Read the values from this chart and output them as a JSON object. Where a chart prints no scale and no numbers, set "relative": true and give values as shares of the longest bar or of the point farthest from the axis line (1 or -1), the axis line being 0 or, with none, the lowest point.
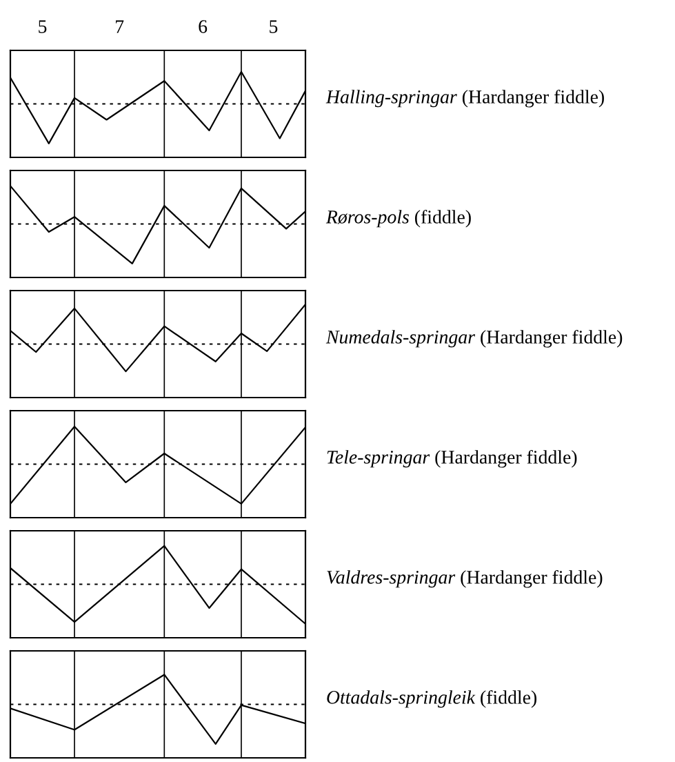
{
  "chart_data": [
    {
      "type": "line",
      "grid": "x",
      "relative": true,
      "annotations": [
        "5",
        "7",
        "6",
        "5"
      ],
      "marker": "none",
      "line_style": "solid",
      "categories": [
        null,
        null,
        null,
        null,
        null,
        null,
        null,
        null,
        null,
        null,
        null,
        null,
        null,
        null,
        null,
        null,
        null,
        null,
        null,
        null,
        null,
        null,
        null,
        null,
        null,
        null,
        null,
        null,
        null,
        null,
        null,
        null,
        null,
        null,
        null,
        null,
        null,
        null,
        null,
        null,
        null,
        null,
        null,
        null,
        null,
        null,
        null
      ],
      "series": [
        {
          "name": "Halling-springar (Hardanger fiddle)",
          "color": "#000000",
          "values": [
            0.66,
            null,
            null,
            null,
            null,
            null,
            -1,
            null,
            null,
            null,
            0.15,
            null,
            null,
            null,
            null,
            -0.4,
            null,
            null,
            null,
            null,
            null,
            null,
            null,
            null,
            0.58,
            null,
            null,
            null,
            null,
            null,
            null,
            -0.67,
            null,
            null,
            null,
            null,
            0.81,
            null,
            null,
            null,
            null,
            null,
            -0.87,
            null,
            null,
            null,
            0.33
          ]
        }
      ],
      "ref_lines": [
        {
          "axis": "y",
          "value": 0,
          "color": "#000000",
          "line_style": "dotted"
        }
      ]
    },
    {
      "type": "line",
      "grid": "x",
      "relative": true,
      "marker": "none",
      "line_style": "solid",
      "categories": [
        null,
        null,
        null,
        null,
        null,
        null,
        null,
        null,
        null,
        null,
        null,
        null,
        null,
        null,
        null,
        null,
        null,
        null,
        null,
        null,
        null,
        null,
        null,
        null,
        null,
        null,
        null,
        null,
        null,
        null,
        null,
        null,
        null,
        null,
        null,
        null,
        null,
        null,
        null,
        null,
        null,
        null,
        null,
        null,
        null,
        null,
        null
      ],
      "series": [
        {
          "name": "Røros-pols (fiddle)",
          "color": "#000000",
          "values": [
            0.96,
            null,
            null,
            null,
            null,
            null,
            -0.2,
            null,
            null,
            null,
            0.18,
            null,
            null,
            null,
            null,
            null,
            null,
            null,
            null,
            -1,
            null,
            null,
            null,
            null,
            0.46,
            null,
            null,
            null,
            null,
            null,
            null,
            -0.6,
            null,
            null,
            null,
            null,
            0.9,
            null,
            null,
            null,
            null,
            null,
            null,
            -0.12,
            null,
            null,
            0.32
          ]
        }
      ],
      "ref_lines": [
        {
          "axis": "y",
          "value": 0,
          "color": "#000000",
          "line_style": "dotted"
        }
      ]
    },
    {
      "type": "line",
      "grid": "x",
      "relative": true,
      "marker": "none",
      "line_style": "solid",
      "categories": [
        null,
        null,
        null,
        null,
        null,
        null,
        null,
        null,
        null,
        null,
        null,
        null,
        null,
        null,
        null,
        null,
        null,
        null,
        null,
        null,
        null,
        null,
        null,
        null,
        null,
        null,
        null,
        null,
        null,
        null,
        null,
        null,
        null,
        null,
        null,
        null,
        null,
        null,
        null,
        null,
        null,
        null,
        null,
        null,
        null,
        null,
        null
      ],
      "series": [
        {
          "name": "Numedals-springar (Hardanger fiddle)",
          "color": "#000000",
          "values": [
            0.34,
            null,
            null,
            null,
            -0.2,
            null,
            null,
            null,
            null,
            null,
            0.9,
            null,
            null,
            null,
            null,
            null,
            null,
            null,
            -0.69,
            null,
            null,
            null,
            null,
            null,
            0.45,
            null,
            null,
            null,
            null,
            null,
            null,
            null,
            -0.44,
            null,
            null,
            null,
            0.27,
            null,
            null,
            null,
            -0.18,
            null,
            null,
            null,
            null,
            null,
            1
          ]
        }
      ],
      "ref_lines": [
        {
          "axis": "y",
          "value": 0,
          "color": "#000000",
          "line_style": "dotted"
        }
      ]
    },
    {
      "type": "line",
      "grid": "x",
      "relative": true,
      "marker": "none",
      "line_style": "solid",
      "categories": [
        null,
        null,
        null,
        null,
        null,
        null,
        null,
        null,
        null,
        null,
        null,
        null,
        null,
        null,
        null,
        null,
        null,
        null,
        null,
        null,
        null,
        null,
        null,
        null,
        null,
        null,
        null,
        null,
        null,
        null,
        null,
        null,
        null,
        null,
        null,
        null,
        null,
        null,
        null,
        null,
        null,
        null,
        null,
        null,
        null,
        null,
        null
      ],
      "series": [
        {
          "name": "Tele-springar (Hardanger fiddle)",
          "color": "#000000",
          "values": [
            -1,
            null,
            null,
            null,
            null,
            null,
            null,
            null,
            null,
            null,
            0.95,
            null,
            null,
            null,
            null,
            null,
            null,
            null,
            -0.46,
            null,
            null,
            null,
            null,
            null,
            0.27,
            null,
            null,
            null,
            null,
            null,
            null,
            null,
            null,
            null,
            null,
            null,
            -1,
            null,
            null,
            null,
            null,
            null,
            null,
            null,
            null,
            null,
            0.93
          ]
        }
      ],
      "ref_lines": [
        {
          "axis": "y",
          "value": 0,
          "color": "#000000",
          "line_style": "dotted"
        }
      ]
    },
    {
      "type": "line",
      "grid": "x",
      "relative": true,
      "marker": "none",
      "line_style": "solid",
      "categories": [
        null,
        null,
        null,
        null,
        null,
        null,
        null,
        null,
        null,
        null,
        null,
        null,
        null,
        null,
        null,
        null,
        null,
        null,
        null,
        null,
        null,
        null,
        null,
        null,
        null,
        null,
        null,
        null,
        null,
        null,
        null,
        null,
        null,
        null,
        null,
        null,
        null,
        null,
        null,
        null,
        null,
        null,
        null,
        null,
        null,
        null,
        null
      ],
      "series": [
        {
          "name": "Valdres-springar (Hardanger fiddle)",
          "color": "#000000",
          "values": [
            0.41,
            null,
            null,
            null,
            null,
            null,
            null,
            null,
            null,
            null,
            -0.95,
            null,
            null,
            null,
            null,
            null,
            null,
            null,
            null,
            null,
            null,
            null,
            null,
            null,
            0.97,
            null,
            null,
            null,
            null,
            null,
            null,
            -0.6,
            null,
            null,
            null,
            null,
            0.38,
            null,
            null,
            null,
            null,
            null,
            null,
            null,
            null,
            null,
            -1
          ]
        }
      ],
      "ref_lines": [
        {
          "axis": "y",
          "value": 0,
          "color": "#000000",
          "line_style": "dotted"
        }
      ]
    },
    {
      "type": "line",
      "grid": "x",
      "relative": true,
      "marker": "none",
      "line_style": "solid",
      "categories": [
        null,
        null,
        null,
        null,
        null,
        null,
        null,
        null,
        null,
        null,
        null,
        null,
        null,
        null,
        null,
        null,
        null,
        null,
        null,
        null,
        null,
        null,
        null,
        null,
        null,
        null,
        null,
        null,
        null,
        null,
        null,
        null,
        null,
        null,
        null,
        null,
        null,
        null,
        null,
        null,
        null,
        null,
        null,
        null,
        null,
        null,
        null
      ],
      "series": [
        {
          "name": "Ottadals-springleik (fiddle)",
          "color": "#000000",
          "values": [
            -0.1,
            null,
            null,
            null,
            null,
            null,
            null,
            null,
            null,
            null,
            -0.64,
            null,
            null,
            null,
            null,
            null,
            null,
            null,
            null,
            null,
            null,
            null,
            null,
            null,
            0.75,
            null,
            null,
            null,
            null,
            null,
            null,
            null,
            -1,
            null,
            null,
            null,
            -0.02,
            null,
            null,
            null,
            null,
            null,
            null,
            null,
            null,
            null,
            -0.48
          ]
        }
      ],
      "ref_lines": [
        {
          "axis": "y",
          "value": 0,
          "color": "#000000",
          "line_style": "dotted"
        }
      ]
    }
  ]
}
